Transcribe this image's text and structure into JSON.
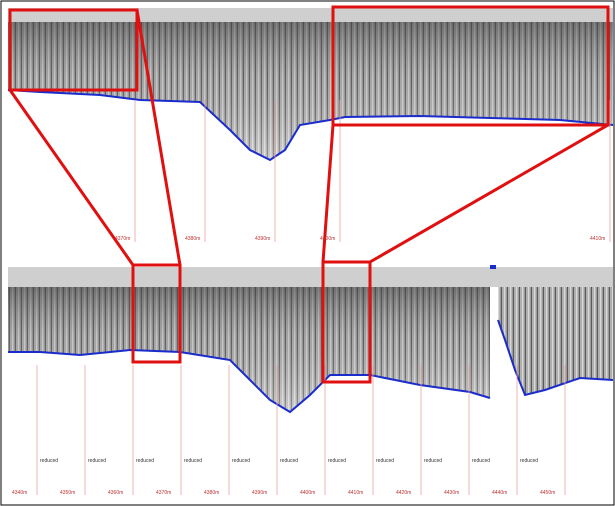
{
  "top_panel": {
    "distance_labels": [
      "4370m",
      "4380m",
      "4390m",
      "4400m",
      "4410m"
    ]
  },
  "bottom_panel": {
    "distance_labels": [
      "4340m",
      "4350m",
      "4360m",
      "4370m",
      "4380m",
      "4390m",
      "4400m",
      "4410m",
      "4420m",
      "4430m",
      "4440m",
      "4450m"
    ],
    "section_label": "reduced"
  }
}
